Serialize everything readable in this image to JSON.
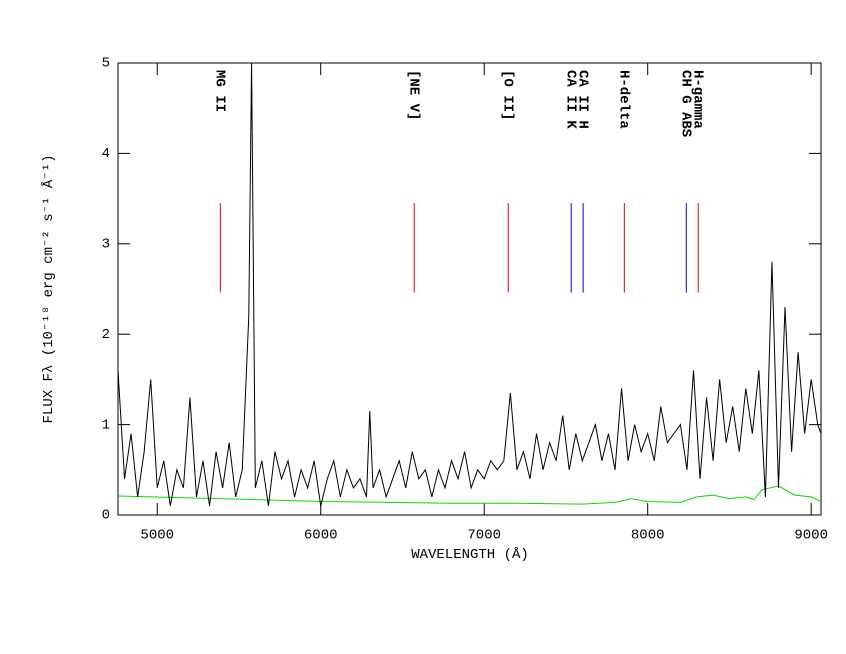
{
  "chart_data": {
    "type": "line",
    "xlabel": "WAVELENGTH (Å)",
    "ylabel": "FLUX Fλ (10⁻¹⁸ erg cm⁻² s⁻¹ Å⁻¹)",
    "xlim": [
      4760,
      9060
    ],
    "ylim": [
      0,
      5
    ],
    "xticks": [
      5000,
      6000,
      7000,
      8000,
      9000
    ],
    "yticks": [
      0,
      1,
      2,
      3,
      4,
      5
    ],
    "series": [
      {
        "color": "#000000",
        "x": [
          4760,
          4800,
          4840,
          4880,
          4920,
          4960,
          5000,
          5040,
          5080,
          5120,
          5160,
          5200,
          5240,
          5280,
          5320,
          5360,
          5400,
          5440,
          5480,
          5520,
          5560,
          5577,
          5600,
          5640,
          5680,
          5720,
          5760,
          5800,
          5840,
          5880,
          5920,
          5960,
          6000,
          6040,
          6080,
          6120,
          6160,
          6200,
          6240,
          6280,
          6300,
          6320,
          6360,
          6400,
          6440,
          6480,
          6520,
          6560,
          6600,
          6640,
          6680,
          6720,
          6760,
          6800,
          6840,
          6880,
          6920,
          6960,
          7000,
          7040,
          7080,
          7120,
          7160,
          7200,
          7240,
          7280,
          7320,
          7360,
          7400,
          7440,
          7480,
          7520,
          7560,
          7600,
          7640,
          7680,
          7720,
          7760,
          7800,
          7840,
          7880,
          7920,
          7960,
          8000,
          8040,
          8080,
          8120,
          8160,
          8200,
          8240,
          8280,
          8320,
          8360,
          8400,
          8440,
          8480,
          8520,
          8560,
          8600,
          8640,
          8680,
          8720,
          8760,
          8800,
          8840,
          8880,
          8920,
          8960,
          9000,
          9040,
          9060
        ],
        "values": [
          1.6,
          0.4,
          0.9,
          0.2,
          0.7,
          1.5,
          0.3,
          0.6,
          0.1,
          0.5,
          0.3,
          1.3,
          0.2,
          0.6,
          0.1,
          0.7,
          0.3,
          0.8,
          0.2,
          0.5,
          2.2,
          5.0,
          0.3,
          0.6,
          0.1,
          0.7,
          0.4,
          0.6,
          0.2,
          0.5,
          0.3,
          0.6,
          0.1,
          0.4,
          0.6,
          0.2,
          0.5,
          0.3,
          0.4,
          0.2,
          1.15,
          0.3,
          0.5,
          0.2,
          0.4,
          0.6,
          0.3,
          0.7,
          0.4,
          0.5,
          0.2,
          0.5,
          0.3,
          0.6,
          0.4,
          0.7,
          0.3,
          0.5,
          0.4,
          0.6,
          0.5,
          0.6,
          1.35,
          0.5,
          0.7,
          0.4,
          0.9,
          0.5,
          0.8,
          0.6,
          1.1,
          0.5,
          0.9,
          0.6,
          0.8,
          1.0,
          0.6,
          0.9,
          0.5,
          1.4,
          0.6,
          1.0,
          0.7,
          0.9,
          0.6,
          1.2,
          0.8,
          0.9,
          1.0,
          0.5,
          1.6,
          0.4,
          1.3,
          0.6,
          1.5,
          0.8,
          1.2,
          0.7,
          1.4,
          0.9,
          1.6,
          0.2,
          2.8,
          0.3,
          2.3,
          0.7,
          1.8,
          0.9,
          1.5,
          1.0,
          0.9
        ]
      },
      {
        "color": "#00dd00",
        "x": [
          4760,
          5200,
          5600,
          6000,
          6400,
          6800,
          7200,
          7600,
          7800,
          7900,
          8000,
          8200,
          8300,
          8400,
          8500,
          8600,
          8650,
          8700,
          8800,
          8900,
          9000,
          9060
        ],
        "values": [
          0.21,
          0.19,
          0.17,
          0.15,
          0.14,
          0.13,
          0.13,
          0.12,
          0.14,
          0.18,
          0.15,
          0.14,
          0.2,
          0.22,
          0.18,
          0.2,
          0.17,
          0.28,
          0.32,
          0.22,
          0.2,
          0.15
        ]
      }
    ],
    "lines": [
      {
        "label": "MG II",
        "x": 5386,
        "color": "#e00000",
        "span": [
          2.46,
          3.45
        ]
      },
      {
        "label": "[NE V]",
        "x": 6572,
        "color": "#e00000",
        "span": [
          2.46,
          3.45
        ]
      },
      {
        "label": "[O II]",
        "x": 7147,
        "color": "#e00000",
        "span": [
          2.46,
          3.45
        ]
      },
      {
        "label": "CA II K",
        "x": 7532,
        "color": "#0000e0",
        "span": [
          2.46,
          3.45
        ]
      },
      {
        "label": "CA II H",
        "x": 7605,
        "color": "#0000e0",
        "span": [
          2.46,
          3.45
        ]
      },
      {
        "label": "H-delta",
        "x": 7857,
        "color": "#e00000",
        "span": [
          2.46,
          3.45
        ]
      },
      {
        "label": "CH G ABS",
        "x": 8236,
        "color": "#0000e0",
        "span": [
          2.46,
          3.45
        ]
      },
      {
        "label": "H-gamma",
        "x": 8309,
        "color": "#e00000",
        "span": [
          2.46,
          3.45
        ]
      }
    ]
  }
}
